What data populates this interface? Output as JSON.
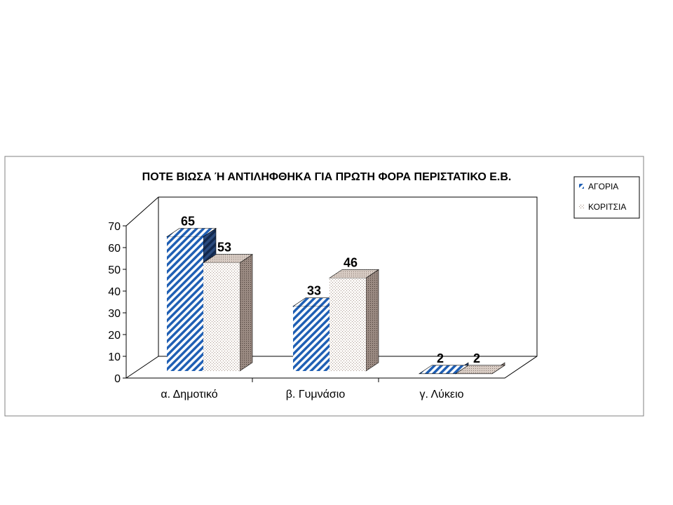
{
  "chart_data": {
    "type": "bar",
    "title": "ΠΟΤΕ ΒΙΩΣΑ Ή ΑΝΤΙΛΗΦΘΗΚΑ ΓΙΑ ΠΡΩΤΗ ΦΟΡΑ ΠΕΡΙΣΤΑΤΙΚΟ Ε.Β.",
    "categories": [
      "α.  Δημοτικό",
      "β. Γυμνάσιο",
      "γ. Λύκειο"
    ],
    "series": [
      {
        "name": "ΑΓΟΡΙΑ",
        "values": [
          65,
          33,
          2
        ],
        "color": "#1f5fb4",
        "pattern": "diagonal-stripes"
      },
      {
        "name": "ΚΟΡΙΤΣΙΑ",
        "values": [
          53,
          46,
          2
        ],
        "color": "#b0a098",
        "pattern": "dots"
      }
    ],
    "ylim": [
      0,
      70
    ],
    "yticks": [
      0,
      10,
      20,
      30,
      40,
      50,
      60,
      70
    ],
    "xlabel": "",
    "ylabel": "",
    "legend": "top-right",
    "grid": false
  }
}
